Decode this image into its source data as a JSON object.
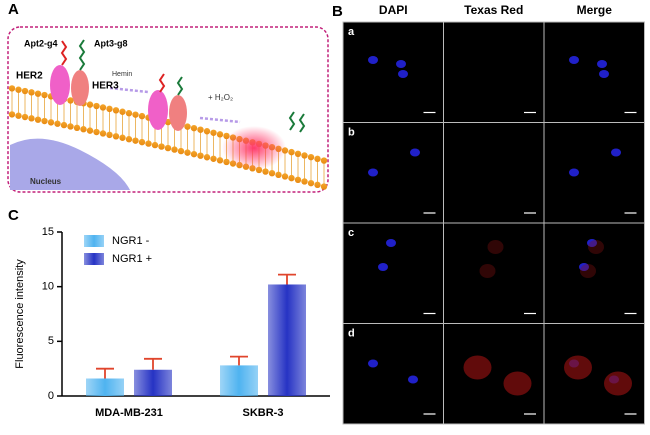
{
  "panel_a": {
    "label": "A",
    "apt2": "Apt2-g4",
    "apt3": "Apt3-g8",
    "her2": "HER2",
    "her3": "HER3",
    "hemin": "Hemin",
    "h2o2": "+ H₂O₂",
    "nucleus": "Nucleus"
  },
  "panel_b": {
    "label": "B",
    "columns": [
      "DAPI",
      "Texas Red",
      "Merge"
    ],
    "rows": [
      "a",
      "b",
      "c",
      "d"
    ]
  },
  "chart_data": {
    "type": "bar",
    "label": "C",
    "y_label": "Fluorescence intensity",
    "categories": [
      "MDA-MB-231",
      "SKBR-3"
    ],
    "series": [
      {
        "name": "NGR1 -",
        "color": "#4fb3f0",
        "values": [
          1.6,
          2.8
        ],
        "errors": [
          0.9,
          0.8
        ]
      },
      {
        "name": "NGR1 +",
        "color": "#2633c4",
        "values": [
          2.4,
          10.2
        ],
        "errors": [
          1.0,
          0.9
        ]
      }
    ],
    "error_color": "#e0452c",
    "ylim": [
      0,
      15
    ],
    "yticks": [
      0,
      5,
      10,
      15
    ]
  }
}
